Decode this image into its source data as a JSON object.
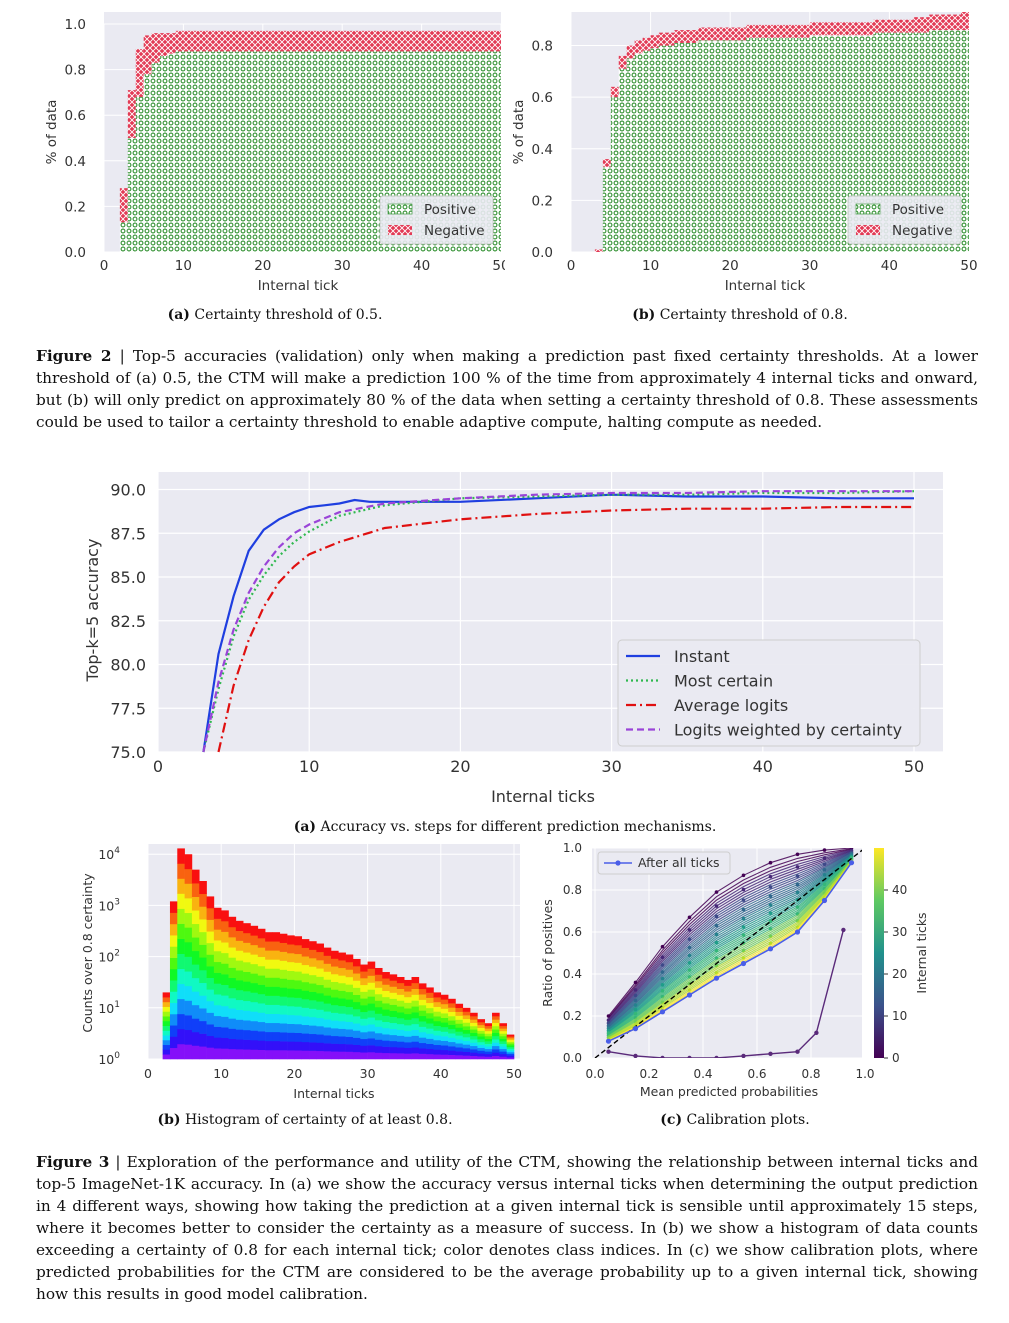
{
  "fig2": {
    "label": "Figure 2",
    "text": "Top-5 accuracies (validation) only when making a prediction past fixed certainty thresholds. At a lower threshold of (a) 0.5, the CTM will make a prediction 100 % of the time from approximately 4 internal ticks and onward, but (b) will only predict on approximately 80 % of the data when setting a certainty threshold of 0.8. These assessments could be used to tailor a certainty threshold to enable adaptive compute, halting compute as needed.",
    "sub_a_tag": "(a)",
    "sub_a": "Certainty threshold of 0.5.",
    "sub_b_tag": "(b)",
    "sub_b": "Certainty threshold of 0.8."
  },
  "fig3": {
    "label": "Figure 3",
    "text": "Exploration of the performance and utility of the CTM, showing the relationship between internal ticks and top-5 ImageNet-1K accuracy. In (a) we show the accuracy versus internal ticks when determining the output prediction in 4 different ways, showing how taking the prediction at a given internal tick is sensible until approximately 15 steps, where it becomes better to consider the certainty as a measure of success. In (b) we show a histogram of data counts exceeding a certainty of 0.8 for each internal tick; color denotes class indices. In (c) we show calibration plots, where predicted probabilities for the CTM are considered to be the average probability up to a given internal tick, showing how this results in good model calibration.",
    "sub_a_tag": "(a)",
    "sub_a": "Accuracy vs. steps for different prediction mechanisms.",
    "sub_b_tag": "(b)",
    "sub_b": "Histogram of certainty of at least 0.8.",
    "sub_c_tag": "(c)",
    "sub_c": "Calibration plots."
  },
  "chart_data": [
    {
      "id": "threshold_05",
      "type": "bar",
      "stacked": true,
      "xlabel": "Internal tick",
      "ylabel": "% of data",
      "xlim": [
        0,
        50
      ],
      "ylim": [
        0,
        1.0
      ],
      "xticks": [
        0,
        10,
        20,
        30,
        40,
        50
      ],
      "yticks": [
        0.0,
        0.2,
        0.4,
        0.6,
        0.8,
        1.0
      ],
      "legend": "bottom-right",
      "series": [
        {
          "name": "Positive",
          "color": "#3a9a3a",
          "values": [
            0.0,
            0.0,
            0.13,
            0.5,
            0.68,
            0.78,
            0.83,
            0.86,
            0.87,
            0.88,
            0.88,
            0.88,
            0.88,
            0.88,
            0.88,
            0.88,
            0.88,
            0.88,
            0.88,
            0.88,
            0.88,
            0.88,
            0.88,
            0.88,
            0.88,
            0.88,
            0.88,
            0.88,
            0.88,
            0.88,
            0.88,
            0.88,
            0.88,
            0.88,
            0.88,
            0.88,
            0.88,
            0.88,
            0.88,
            0.88,
            0.88,
            0.88,
            0.88,
            0.88,
            0.88,
            0.88,
            0.88,
            0.88,
            0.88,
            0.88
          ]
        },
        {
          "name": "Negative",
          "color": "#d93050",
          "values": [
            0.0,
            0.0,
            0.15,
            0.21,
            0.21,
            0.17,
            0.13,
            0.1,
            0.09,
            0.09,
            0.09,
            0.09,
            0.09,
            0.09,
            0.09,
            0.09,
            0.09,
            0.09,
            0.09,
            0.09,
            0.09,
            0.09,
            0.09,
            0.09,
            0.09,
            0.09,
            0.09,
            0.09,
            0.09,
            0.09,
            0.09,
            0.09,
            0.09,
            0.09,
            0.09,
            0.09,
            0.09,
            0.09,
            0.09,
            0.09,
            0.09,
            0.09,
            0.09,
            0.09,
            0.09,
            0.09,
            0.09,
            0.09,
            0.09,
            0.09
          ]
        }
      ]
    },
    {
      "id": "threshold_08",
      "type": "bar",
      "stacked": true,
      "xlabel": "Internal tick",
      "ylabel": "% of data",
      "xlim": [
        0,
        50
      ],
      "ylim": [
        0,
        0.93
      ],
      "xticks": [
        0,
        10,
        20,
        30,
        40,
        50
      ],
      "yticks": [
        0.0,
        0.2,
        0.4,
        0.6,
        0.8
      ],
      "legend": "bottom-right",
      "series": [
        {
          "name": "Positive",
          "color": "#3a9a3a",
          "values": [
            0.0,
            0.0,
            0.0,
            0.0,
            0.33,
            0.6,
            0.71,
            0.75,
            0.77,
            0.78,
            0.79,
            0.8,
            0.8,
            0.81,
            0.81,
            0.81,
            0.82,
            0.82,
            0.82,
            0.82,
            0.82,
            0.82,
            0.83,
            0.83,
            0.83,
            0.83,
            0.83,
            0.83,
            0.83,
            0.83,
            0.84,
            0.84,
            0.84,
            0.84,
            0.84,
            0.84,
            0.84,
            0.84,
            0.85,
            0.85,
            0.85,
            0.85,
            0.85,
            0.85,
            0.85,
            0.86,
            0.86,
            0.86,
            0.86,
            0.86
          ]
        },
        {
          "name": "Negative",
          "color": "#d93050",
          "values": [
            0.0,
            0.0,
            0.0,
            0.01,
            0.03,
            0.04,
            0.05,
            0.05,
            0.05,
            0.05,
            0.05,
            0.05,
            0.05,
            0.05,
            0.05,
            0.05,
            0.05,
            0.05,
            0.05,
            0.05,
            0.05,
            0.05,
            0.05,
            0.05,
            0.05,
            0.05,
            0.05,
            0.05,
            0.05,
            0.05,
            0.05,
            0.05,
            0.05,
            0.05,
            0.05,
            0.05,
            0.05,
            0.05,
            0.05,
            0.05,
            0.05,
            0.05,
            0.05,
            0.06,
            0.06,
            0.06,
            0.06,
            0.06,
            0.06,
            0.07
          ]
        }
      ]
    },
    {
      "id": "accuracy_vs_ticks",
      "type": "line",
      "xlabel": "Internal ticks",
      "ylabel": "Top-k=5 accuracy",
      "xlim": [
        0,
        50
      ],
      "ylim": [
        75,
        91
      ],
      "xticks": [
        0,
        10,
        20,
        30,
        40,
        50
      ],
      "yticks": [
        "75.0",
        "77.5",
        "80.0",
        "82.5",
        "85.0",
        "87.5",
        "90.0"
      ],
      "legend": "center-right",
      "grid": true,
      "series": [
        {
          "name": "Instant",
          "color": "#1f3fe0",
          "style": "solid",
          "x": [
            3,
            4,
            5,
            6,
            7,
            8,
            9,
            10,
            11,
            12,
            13,
            14,
            15,
            17,
            20,
            25,
            30,
            35,
            40,
            45,
            50
          ],
          "y": [
            75,
            80.6,
            83.9,
            86.5,
            87.7,
            88.3,
            88.7,
            89.0,
            89.1,
            89.2,
            89.4,
            89.3,
            89.3,
            89.3,
            89.3,
            89.5,
            89.7,
            89.6,
            89.6,
            89.5,
            89.5
          ]
        },
        {
          "name": "Most certain",
          "color": "#2fb84f",
          "style": "dotted",
          "x": [
            3,
            4,
            5,
            6,
            7,
            8,
            9,
            10,
            12,
            15,
            20,
            25,
            30,
            35,
            40,
            45,
            50
          ],
          "y": [
            75,
            78.6,
            81.6,
            83.7,
            85.1,
            86.2,
            87.0,
            87.6,
            88.5,
            89.1,
            89.5,
            89.6,
            89.7,
            89.7,
            89.8,
            89.8,
            89.9
          ]
        },
        {
          "name": "Average logits",
          "color": "#e01010",
          "style": "dashdot",
          "x": [
            4,
            5,
            6,
            7,
            8,
            9,
            10,
            12,
            15,
            20,
            25,
            30,
            35,
            40,
            45,
            50
          ],
          "y": [
            75,
            78.8,
            81.4,
            83.3,
            84.7,
            85.6,
            86.3,
            87.0,
            87.8,
            88.3,
            88.6,
            88.8,
            88.9,
            88.9,
            89.0,
            89.0
          ]
        },
        {
          "name": "Logits weighted by certainty",
          "color": "#9a44d8",
          "style": "dashed",
          "x": [
            3,
            4,
            5,
            6,
            7,
            8,
            9,
            10,
            12,
            15,
            20,
            25,
            30,
            35,
            40,
            45,
            50
          ],
          "y": [
            75,
            79.0,
            82.0,
            84.1,
            85.6,
            86.7,
            87.5,
            88.0,
            88.7,
            89.2,
            89.5,
            89.7,
            89.8,
            89.8,
            89.9,
            89.9,
            89.9
          ]
        }
      ]
    },
    {
      "id": "certainty_histogram",
      "type": "bar",
      "xlabel": "Internal ticks",
      "ylabel": "Counts over 0.8 certainty",
      "yscale": "log",
      "xlim": [
        0,
        50
      ],
      "ylim_exp": [
        0,
        4.2
      ],
      "xticks": [
        0,
        10,
        20,
        30,
        40,
        50
      ],
      "yticks": [
        {
          "base": "10",
          "exp": "0"
        },
        {
          "base": "10",
          "exp": "1"
        },
        {
          "base": "10",
          "exp": "2"
        },
        {
          "base": "10",
          "exp": "3"
        },
        {
          "base": "10",
          "exp": "4"
        }
      ],
      "colormap": "rainbow (class indices)",
      "values": [
        0,
        0,
        20,
        1200,
        13000,
        10000,
        5000,
        3000,
        1500,
        900,
        800,
        600,
        500,
        450,
        400,
        350,
        300,
        300,
        280,
        260,
        250,
        220,
        200,
        180,
        150,
        130,
        120,
        110,
        90,
        70,
        80,
        60,
        50,
        45,
        40,
        35,
        40,
        30,
        25,
        20,
        18,
        15,
        12,
        10,
        8,
        6,
        5,
        8,
        5,
        3
      ]
    },
    {
      "id": "calibration",
      "type": "line",
      "xlabel": "Mean predicted probabilities",
      "ylabel": "Ratio of positives",
      "xlim": [
        0,
        1.0
      ],
      "ylim": [
        0,
        1.0
      ],
      "xticks": [
        "0.0",
        "0.2",
        "0.4",
        "0.6",
        "0.8",
        "1.0"
      ],
      "yticks": [
        "0.0",
        "0.2",
        "0.4",
        "0.6",
        "0.8",
        "1.0"
      ],
      "legend": "top-left",
      "colorbar": {
        "label": "Internal ticks",
        "ticks": [
          "0",
          "10",
          "20",
          "30",
          "40"
        ],
        "range": [
          0,
          50
        ]
      },
      "highlight": {
        "name": "After all ticks",
        "color": "#4a5ee8",
        "x": [
          0.05,
          0.15,
          0.25,
          0.35,
          0.45,
          0.55,
          0.65,
          0.75,
          0.85,
          0.95
        ],
        "y": [
          0.08,
          0.14,
          0.22,
          0.3,
          0.38,
          0.45,
          0.52,
          0.6,
          0.75,
          0.93
        ]
      },
      "first_tick": {
        "x": [
          0.05,
          0.15,
          0.25,
          0.35,
          0.45,
          0.55,
          0.65,
          0.75,
          0.82,
          0.92
        ],
        "y": [
          0.03,
          0.01,
          0.0,
          0.0,
          0.0,
          0.01,
          0.02,
          0.03,
          0.12,
          0.61
        ]
      },
      "early_tick": {
        "x": [
          0.05,
          0.15,
          0.25,
          0.35,
          0.45,
          0.55,
          0.65,
          0.75,
          0.85,
          0.95
        ],
        "y": [
          0.2,
          0.36,
          0.53,
          0.67,
          0.79,
          0.87,
          0.93,
          0.97,
          0.99,
          1.0
        ]
      }
    }
  ]
}
